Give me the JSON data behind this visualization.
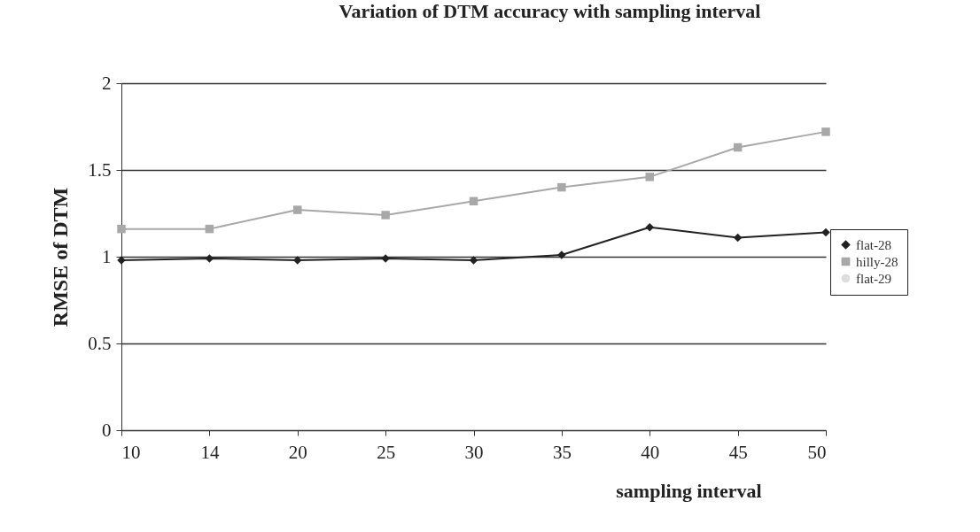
{
  "chart_data": {
    "type": "line",
    "title": "Variation of DTM accuracy with sampling interval",
    "xlabel": "sampling interval",
    "ylabel": "RMSE of DTM",
    "categories": [
      "10",
      "14",
      "20",
      "25",
      "30",
      "35",
      "40",
      "45",
      "50"
    ],
    "series": [
      {
        "name": "flat-28",
        "color": "#222222",
        "marker": "diamond",
        "values": [
          0.98,
          0.99,
          0.98,
          0.99,
          0.98,
          1.01,
          1.17,
          1.11,
          1.14
        ]
      },
      {
        "name": "hilly-28",
        "color": "#a8a8a8",
        "marker": "square",
        "values": [
          1.16,
          1.16,
          1.27,
          1.24,
          1.32,
          1.4,
          1.46,
          1.63,
          1.72
        ]
      },
      {
        "name": "flat-29",
        "color": "#dddddd",
        "values": [
          null,
          null,
          null,
          null,
          null,
          null,
          null,
          null,
          null
        ]
      }
    ],
    "ylim": [
      0,
      2
    ],
    "yticks": [
      0,
      0.5,
      1,
      1.5,
      2
    ],
    "grid": "y",
    "legend": "right"
  }
}
